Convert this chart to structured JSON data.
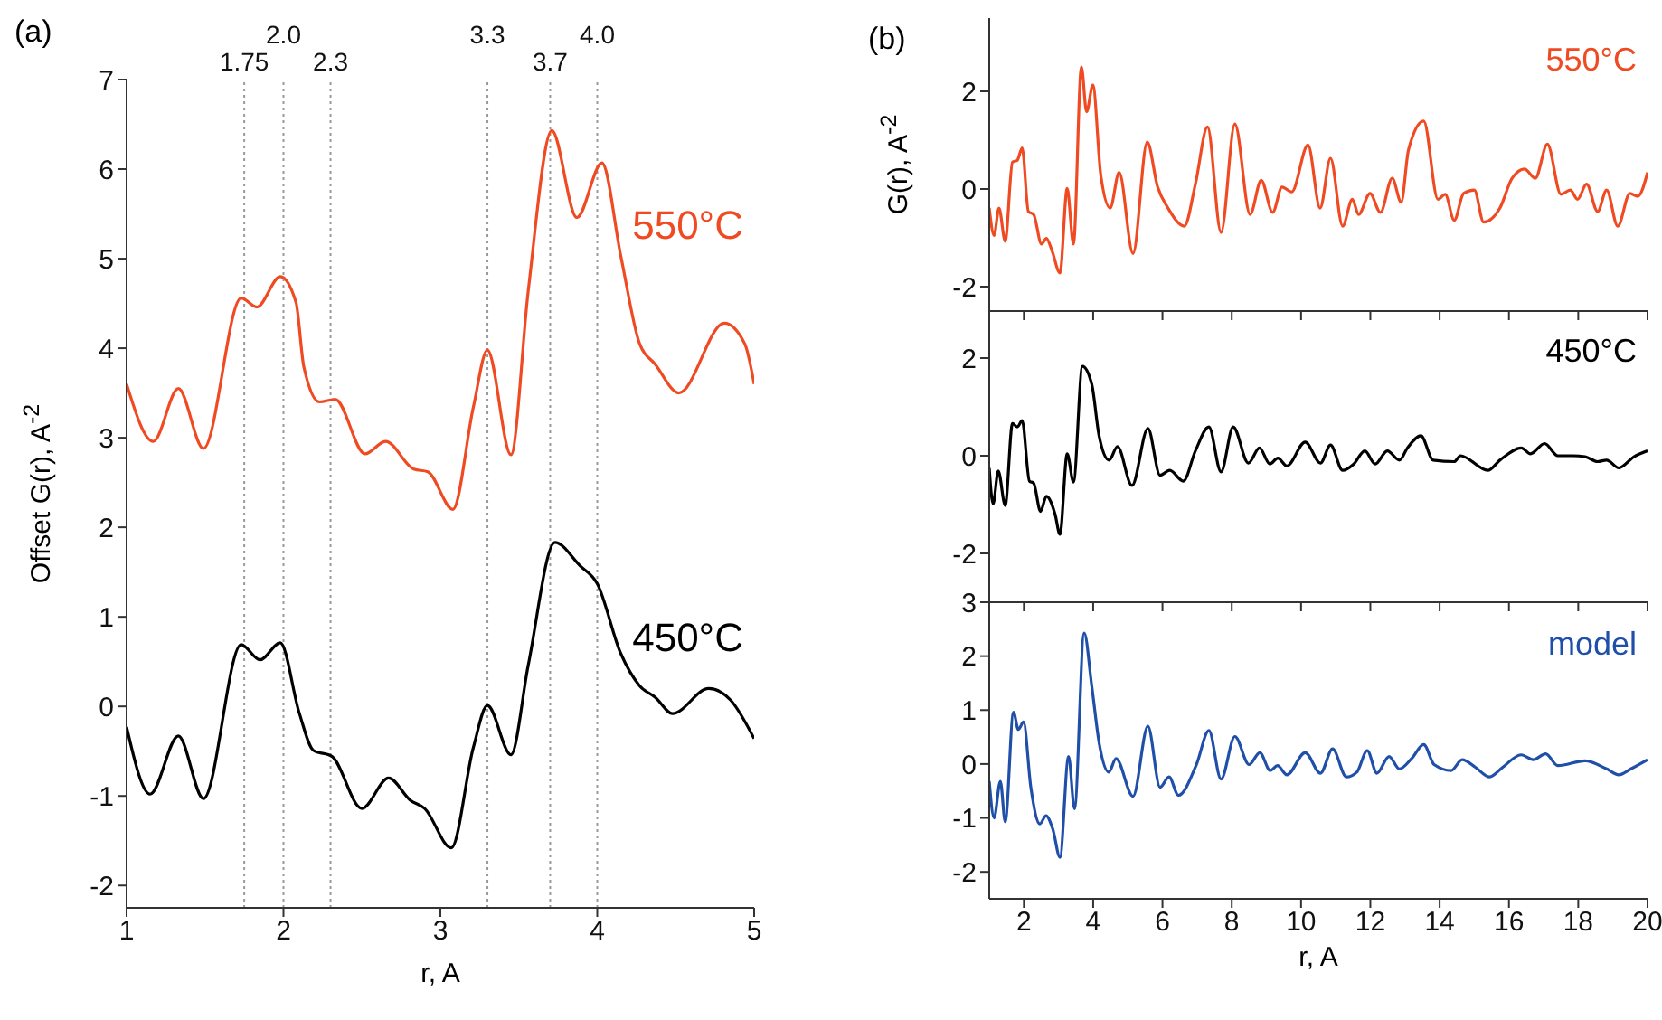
{
  "chart_data": [
    {
      "type": "line",
      "title": "(a)",
      "xlabel": "r, A",
      "ylabel": "Offset   G(r), A$^{-2}$",
      "xlim": [
        1,
        5
      ],
      "xticks": [
        1,
        2,
        3,
        4,
        5
      ],
      "ylim": [
        -2.25,
        7
      ],
      "yticks": [
        -2,
        -1,
        0,
        1,
        2,
        3,
        4,
        5,
        6,
        7
      ],
      "ref_lines": [
        {
          "axis": "x",
          "value": 1.75,
          "label": "1.75",
          "color": "#999999",
          "line_style": "dotted"
        },
        {
          "axis": "x",
          "value": 2.0,
          "label": "2.0",
          "color": "#999999",
          "line_style": "dotted"
        },
        {
          "axis": "x",
          "value": 2.3,
          "label": "2.3",
          "color": "#999999",
          "line_style": "dotted"
        },
        {
          "axis": "x",
          "value": 3.3,
          "label": "3.3",
          "color": "#999999",
          "line_style": "dotted"
        },
        {
          "axis": "x",
          "value": 3.7,
          "label": "3.7",
          "color": "#999999",
          "line_style": "dotted"
        },
        {
          "axis": "x",
          "value": 4.0,
          "label": "4.0",
          "color": "#999999",
          "line_style": "dotted"
        }
      ],
      "series": [
        {
          "name": "550°C",
          "color": "#f04a23",
          "x": [
            1.0,
            1.17,
            1.33,
            1.49,
            1.73,
            1.83,
            1.98,
            2.08,
            2.13,
            2.23,
            2.33,
            2.52,
            2.65,
            2.83,
            2.92,
            3.08,
            3.21,
            3.3,
            3.45,
            3.56,
            3.71,
            3.87,
            4.03,
            4.15,
            4.27,
            4.37,
            4.52,
            4.81,
            4.94,
            5.0
          ],
          "values": [
            3.6,
            2.96,
            3.55,
            2.88,
            4.56,
            4.46,
            4.8,
            4.51,
            3.79,
            3.4,
            3.43,
            2.82,
            2.96,
            2.65,
            2.62,
            2.2,
            3.34,
            3.98,
            2.81,
            4.64,
            6.43,
            5.46,
            6.07,
            5.03,
            4.05,
            3.82,
            3.5,
            4.28,
            4.05,
            3.6
          ]
        },
        {
          "name": "450°C",
          "color": "#000000",
          "x": [
            1.0,
            1.15,
            1.33,
            1.49,
            1.73,
            1.85,
            1.98,
            2.1,
            2.19,
            2.31,
            2.5,
            2.67,
            2.81,
            2.9,
            3.07,
            3.21,
            3.3,
            3.45,
            3.56,
            3.73,
            3.89,
            4.0,
            4.15,
            4.27,
            4.37,
            4.48,
            4.71,
            4.85,
            5.0
          ],
          "values": [
            -0.23,
            -0.98,
            -0.33,
            -1.03,
            0.69,
            0.52,
            0.71,
            -0.07,
            -0.49,
            -0.56,
            -1.14,
            -0.8,
            -1.05,
            -1.14,
            -1.58,
            -0.46,
            0.01,
            -0.54,
            0.46,
            1.83,
            1.57,
            1.37,
            0.59,
            0.23,
            0.1,
            -0.08,
            0.2,
            0.07,
            -0.36
          ]
        }
      ]
    },
    {
      "type": "line",
      "title": "(b)",
      "ylabel": "G(r), A$^{-2}$",
      "tick_labels": "y",
      "xlim": [
        1,
        20
      ],
      "xticks": [
        2,
        4,
        6,
        8,
        10,
        12,
        14,
        16,
        18,
        20
      ],
      "ylim": [
        -2.5,
        3.5
      ],
      "yticks": [
        -2,
        0,
        2
      ],
      "series": [
        {
          "name": "550°C",
          "color": "#f04a23",
          "x": [
            1.0,
            1.14,
            1.28,
            1.46,
            1.67,
            1.81,
            1.95,
            2.13,
            2.28,
            2.51,
            2.65,
            2.81,
            3.04,
            3.25,
            3.43,
            3.66,
            3.81,
            3.99,
            4.22,
            4.49,
            4.75,
            5.15,
            5.56,
            5.86,
            6.16,
            6.63,
            6.95,
            7.3,
            7.69,
            8.09,
            8.53,
            8.85,
            9.18,
            9.45,
            9.73,
            10.2,
            10.55,
            10.85,
            11.2,
            11.48,
            11.66,
            11.99,
            12.29,
            12.63,
            12.89,
            13.1,
            13.54,
            13.95,
            14.16,
            14.42,
            14.69,
            15.0,
            15.27,
            15.74,
            16.09,
            16.45,
            16.76,
            17.11,
            17.5,
            17.77,
            17.98,
            18.24,
            18.56,
            18.82,
            19.14,
            19.49,
            19.72,
            20.0
          ],
          "values": [
            -0.39,
            -0.95,
            -0.39,
            -1.07,
            0.55,
            0.59,
            0.84,
            -0.46,
            -0.52,
            -1.13,
            -1.01,
            -1.26,
            -1.72,
            0.01,
            -1.13,
            2.5,
            1.58,
            2.13,
            0.28,
            -0.39,
            0.34,
            -1.32,
            0.96,
            0.04,
            -0.39,
            -0.76,
            0.1,
            1.27,
            -0.89,
            1.33,
            -0.52,
            0.18,
            -0.48,
            0.04,
            -0.06,
            0.9,
            -0.39,
            0.63,
            -0.76,
            -0.21,
            -0.52,
            -0.09,
            -0.48,
            0.22,
            -0.27,
            0.8,
            1.39,
            -0.21,
            -0.11,
            -0.64,
            -0.09,
            -0.02,
            -0.68,
            -0.39,
            0.22,
            0.41,
            0.22,
            0.92,
            -0.11,
            -0.02,
            -0.21,
            0.1,
            -0.46,
            -0.02,
            -0.76,
            -0.09,
            -0.15,
            0.34
          ]
        }
      ]
    },
    {
      "type": "line",
      "tick_labels": "y",
      "xlim": [
        1,
        20
      ],
      "xticks": [
        2,
        4,
        6,
        8,
        10,
        12,
        14,
        16,
        18,
        20
      ],
      "ylim": [
        -3,
        3
      ],
      "yticks": [
        -2,
        0,
        2
      ],
      "series": [
        {
          "name": "450°C",
          "color": "#000000",
          "x": [
            1.0,
            1.11,
            1.26,
            1.46,
            1.67,
            1.81,
            1.95,
            2.16,
            2.28,
            2.48,
            2.65,
            2.9,
            3.04,
            3.25,
            3.43,
            3.69,
            3.96,
            4.17,
            4.46,
            4.7,
            5.12,
            5.58,
            5.93,
            6.21,
            6.6,
            6.95,
            7.34,
            7.69,
            8.04,
            8.48,
            8.8,
            9.1,
            9.33,
            9.59,
            10.12,
            10.56,
            10.85,
            11.2,
            11.52,
            11.84,
            12.14,
            12.49,
            12.84,
            13.07,
            13.46,
            13.81,
            14.42,
            14.6,
            15.39,
            15.74,
            16.36,
            16.62,
            17.03,
            17.41,
            17.85,
            18.2,
            18.56,
            18.82,
            19.17,
            19.61,
            20.0
          ],
          "values": [
            -0.25,
            -0.99,
            -0.31,
            -1.02,
            0.66,
            0.59,
            0.72,
            -0.52,
            -0.56,
            -1.14,
            -0.83,
            -1.2,
            -1.61,
            0.04,
            -0.54,
            1.83,
            1.46,
            0.41,
            -0.09,
            0.19,
            -0.61,
            0.56,
            -0.4,
            -0.3,
            -0.52,
            0.1,
            0.59,
            -0.33,
            0.59,
            -0.15,
            0.16,
            -0.17,
            -0.05,
            -0.21,
            0.28,
            -0.15,
            0.22,
            -0.3,
            -0.17,
            0.1,
            -0.17,
            0.1,
            -0.09,
            0.16,
            0.41,
            -0.09,
            -0.12,
            0.0,
            -0.3,
            -0.09,
            0.16,
            0.04,
            0.25,
            0.0,
            0.0,
            -0.02,
            -0.12,
            -0.09,
            -0.25,
            -0.02,
            0.1
          ]
        }
      ]
    },
    {
      "type": "line",
      "xlabel": "r, A",
      "xlim": [
        1,
        20
      ],
      "xticks": [
        2,
        4,
        6,
        8,
        10,
        12,
        14,
        16,
        18,
        20
      ],
      "ylim": [
        -2.5,
        3
      ],
      "yticks": [
        -2,
        -1,
        0,
        1,
        2,
        3
      ],
      "series": [
        {
          "name": "model",
          "color": "#1f4fa8",
          "x": [
            1.0,
            1.14,
            1.32,
            1.46,
            1.7,
            1.84,
            1.99,
            2.2,
            2.46,
            2.64,
            2.84,
            3.04,
            3.29,
            3.46,
            3.74,
            3.96,
            4.18,
            4.45,
            4.66,
            5.15,
            5.58,
            5.93,
            6.19,
            6.46,
            6.98,
            7.34,
            7.69,
            8.09,
            8.5,
            8.81,
            9.11,
            9.32,
            9.59,
            10.12,
            10.56,
            10.91,
            11.31,
            11.61,
            11.91,
            12.19,
            12.54,
            12.84,
            13.19,
            13.54,
            13.84,
            14.33,
            14.65,
            15.03,
            15.44,
            15.82,
            16.35,
            16.7,
            17.06,
            17.41,
            18.2,
            18.82,
            19.17,
            19.52,
            20.0
          ],
          "values": [
            -0.32,
            -1.0,
            -0.32,
            -1.07,
            0.96,
            0.64,
            0.78,
            -0.43,
            -1.11,
            -0.96,
            -1.22,
            -1.73,
            0.14,
            -0.83,
            2.43,
            1.44,
            0.36,
            -0.15,
            0.1,
            -0.6,
            0.7,
            -0.43,
            -0.24,
            -0.58,
            -0.01,
            0.62,
            -0.28,
            0.51,
            -0.01,
            0.21,
            -0.12,
            -0.03,
            -0.2,
            0.21,
            -0.17,
            0.28,
            -0.24,
            -0.15,
            0.25,
            -0.17,
            0.14,
            -0.09,
            0.1,
            0.36,
            -0.01,
            -0.12,
            0.08,
            -0.06,
            -0.24,
            -0.06,
            0.17,
            0.08,
            0.19,
            -0.03,
            0.06,
            -0.09,
            -0.2,
            -0.09,
            0.08
          ]
        }
      ]
    }
  ]
}
